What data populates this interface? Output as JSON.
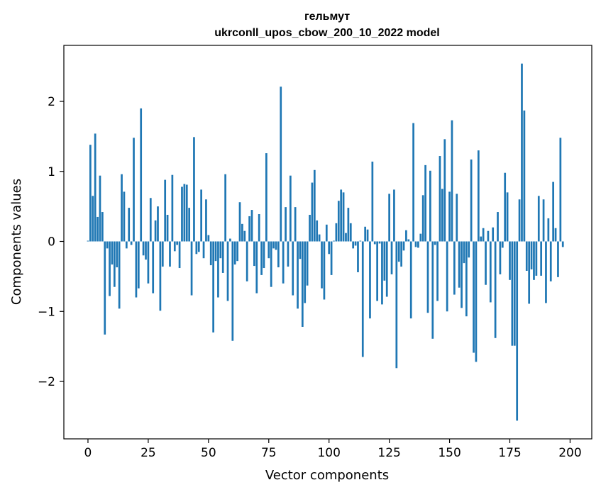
{
  "chart_data": {
    "type": "bar",
    "title": "гельмут",
    "subtitle": "ukrconll_upos_cbow_200_10_2022 model",
    "xlabel": "Vector components",
    "ylabel": "Components values",
    "xlim": [
      -10,
      209
    ],
    "ylim": [
      -2.82,
      2.8
    ],
    "xticks": [
      0,
      25,
      50,
      75,
      100,
      125,
      150,
      175,
      200
    ],
    "xtick_labels": [
      "0",
      "25",
      "50",
      "75",
      "100",
      "125",
      "150",
      "175",
      "200"
    ],
    "yticks": [
      -2,
      -1,
      0,
      1,
      2
    ],
    "ytick_labels": [
      "−2",
      "−1",
      "0",
      "1",
      "2"
    ],
    "grid": false,
    "bar_color": "#1f77b4",
    "values": [
      0.01,
      1.38,
      0.65,
      1.54,
      0.35,
      0.94,
      0.42,
      -1.33,
      -0.1,
      -0.78,
      -0.33,
      -0.65,
      -0.37,
      -0.96,
      0.96,
      0.71,
      -0.1,
      0.48,
      -0.05,
      1.48,
      -0.8,
      -0.67,
      1.9,
      -0.2,
      -0.26,
      -0.6,
      0.62,
      -0.74,
      0.3,
      0.5,
      -0.99,
      -0.36,
      0.88,
      0.38,
      -0.36,
      0.95,
      -0.14,
      -0.05,
      -0.38,
      0.78,
      0.82,
      0.81,
      0.48,
      -0.77,
      1.49,
      -0.18,
      -0.15,
      0.74,
      -0.24,
      0.6,
      0.09,
      -0.34,
      -1.3,
      -0.28,
      -0.8,
      -0.24,
      -0.45,
      0.96,
      -0.85,
      0.04,
      -1.42,
      -0.33,
      -0.28,
      0.56,
      0.25,
      0.15,
      -0.57,
      0.36,
      0.45,
      -0.35,
      -0.74,
      0.39,
      -0.48,
      -0.38,
      1.26,
      -0.24,
      -0.65,
      -0.1,
      -0.12,
      -0.37,
      2.21,
      -0.6,
      0.49,
      -0.36,
      0.94,
      -0.77,
      0.49,
      -0.96,
      -0.25,
      -1.22,
      -0.88,
      -0.63,
      0.38,
      0.84,
      1.02,
      0.3,
      0.1,
      -0.67,
      -0.83,
      0.24,
      -0.18,
      -0.48,
      0.01,
      0.26,
      0.58,
      0.74,
      0.7,
      0.12,
      0.48,
      0.26,
      -0.1,
      -0.06,
      -0.44,
      0.01,
      -1.65,
      0.21,
      0.17,
      -1.1,
      1.14,
      -0.04,
      -0.85,
      -0.03,
      -0.9,
      -0.56,
      -0.79,
      0.68,
      -0.47,
      0.74,
      -1.81,
      -0.29,
      -0.36,
      -0.13,
      0.16,
      0.03,
      -1.1,
      1.69,
      -0.08,
      -0.09,
      0.11,
      0.66,
      1.09,
      -1.02,
      1.01,
      -1.39,
      -0.05,
      -0.85,
      1.22,
      0.75,
      1.46,
      -1.0,
      0.71,
      1.73,
      -0.76,
      0.68,
      -0.66,
      -0.95,
      -0.31,
      -1.07,
      -0.23,
      1.17,
      -1.59,
      -1.72,
      1.3,
      0.07,
      0.19,
      -0.62,
      0.15,
      -0.87,
      0.2,
      -1.38,
      0.42,
      -0.47,
      -0.09,
      0.98,
      0.7,
      -0.55,
      -1.49,
      -1.49,
      -2.56,
      0.6,
      2.54,
      1.87,
      -0.42,
      -0.89,
      -0.4,
      -0.55,
      -0.49,
      0.65,
      -0.49,
      0.6,
      -0.88,
      0.33,
      -0.57,
      0.85,
      0.19,
      -0.51,
      1.48,
      -0.08
    ]
  }
}
